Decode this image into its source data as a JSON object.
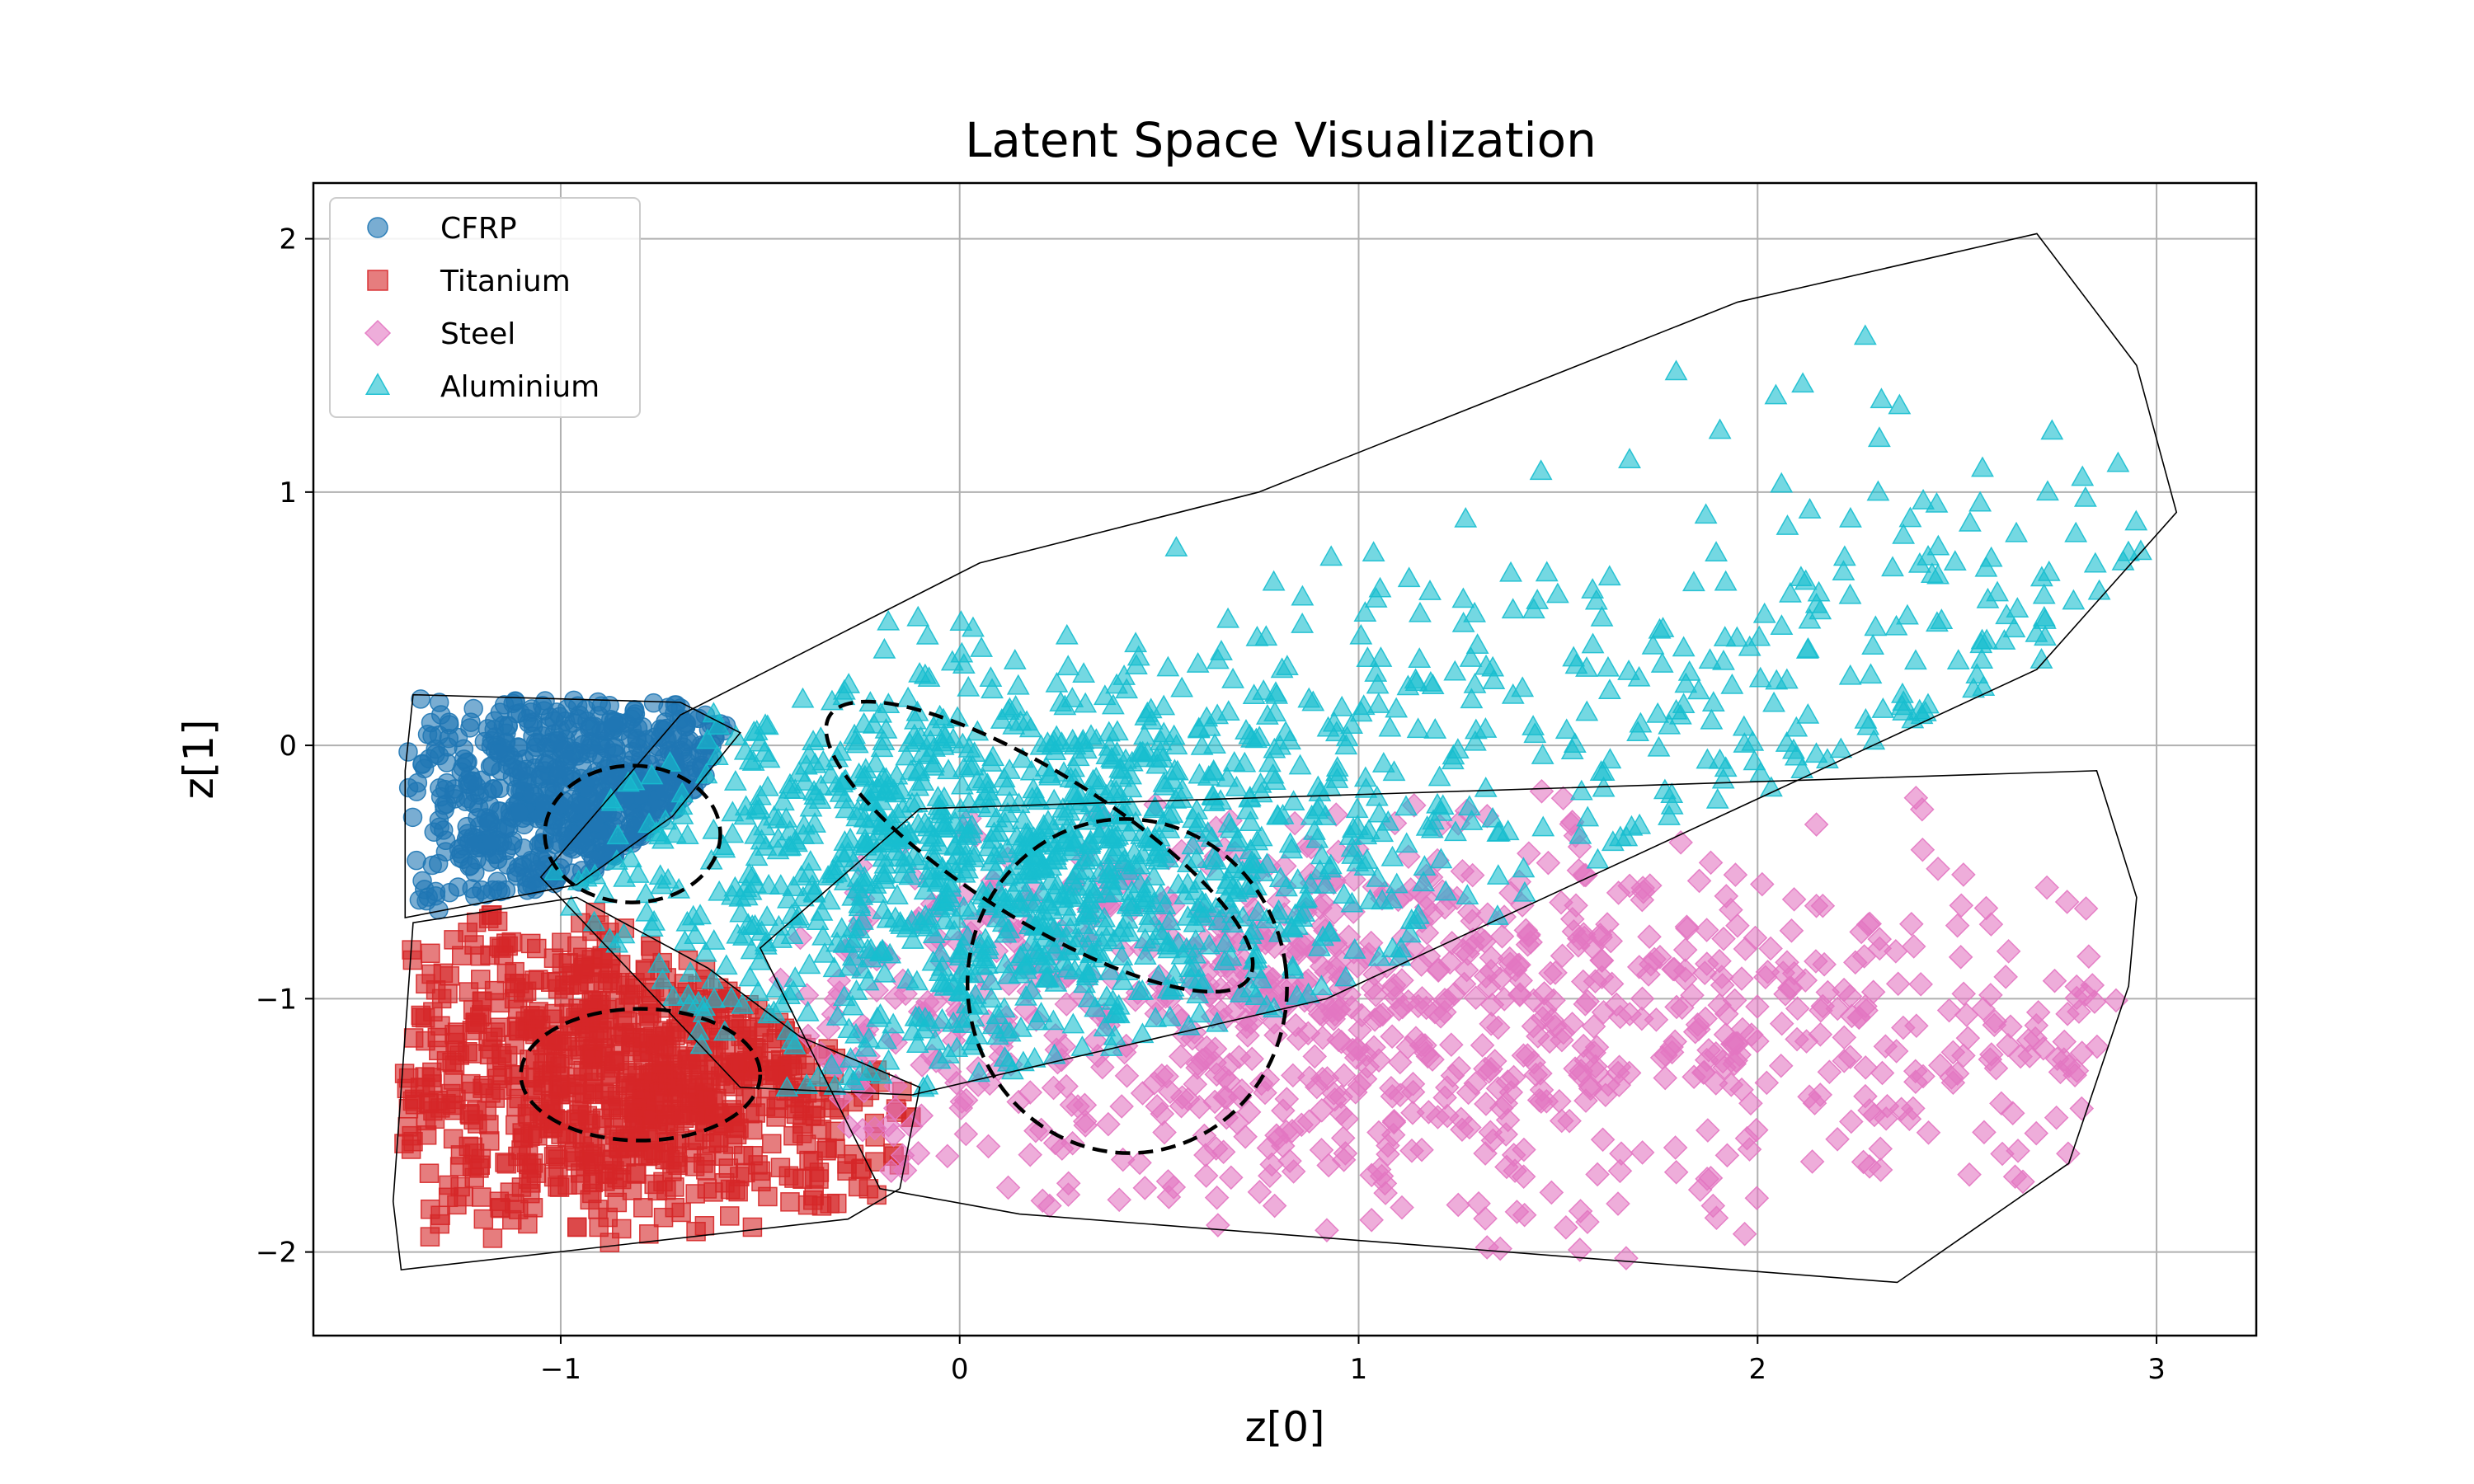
{
  "chart_data": {
    "type": "scatter",
    "title": "Latent Space Visualization",
    "xlabel": "z[0]",
    "ylabel": "z[1]",
    "xlim": [
      -1.62,
      3.25
    ],
    "ylim": [
      -2.33,
      2.22
    ],
    "xticks": [
      -1,
      0,
      1,
      2,
      3
    ],
    "yticks": [
      -2,
      -1,
      0,
      1,
      2
    ],
    "xtick_labels": [
      "−1",
      "0",
      "1",
      "2",
      "3"
    ],
    "ytick_labels": [
      "−2",
      "−1",
      "0",
      "1",
      "2"
    ],
    "grid": true,
    "legend_position": "top-left",
    "series": [
      {
        "name": "CFRP",
        "marker": "circle",
        "color": "#1f77b4",
        "center": [
          -0.85,
          -0.25
        ],
        "spread": [
          0.33,
          0.3
        ],
        "count": 700,
        "hull": [
          [
            -1.37,
            0.2
          ],
          [
            -0.7,
            0.17
          ],
          [
            -0.55,
            0.05
          ],
          [
            -0.72,
            -0.28
          ],
          [
            -0.96,
            -0.55
          ],
          [
            -1.39,
            -0.68
          ],
          [
            -1.39,
            -0.1
          ]
        ],
        "ellipse": {
          "center": [
            -0.82,
            -0.35
          ],
          "rx": 0.22,
          "ry": 0.27,
          "angle": 0
        }
      },
      {
        "name": "Titanium",
        "marker": "square",
        "color": "#d62728",
        "center": [
          -0.8,
          -1.3
        ],
        "spread": [
          0.38,
          0.32
        ],
        "count": 900,
        "hull": [
          [
            -1.37,
            -0.7
          ],
          [
            -0.96,
            -0.6
          ],
          [
            -0.63,
            -0.88
          ],
          [
            -0.4,
            -1.15
          ],
          [
            -0.1,
            -1.35
          ],
          [
            -0.15,
            -1.75
          ],
          [
            -0.28,
            -1.87
          ],
          [
            -1.4,
            -2.07
          ],
          [
            -1.42,
            -1.8
          ]
        ],
        "ellipse": {
          "center": [
            -0.8,
            -1.3
          ],
          "rx": 0.3,
          "ry": 0.26,
          "angle": 0
        }
      },
      {
        "name": "Steel",
        "marker": "diamond",
        "color": "#e377c2",
        "center": [
          0.55,
          -1.05
        ],
        "spread": [
          0.75,
          0.42
        ],
        "count": 1000,
        "hull": [
          [
            -0.1,
            -0.25
          ],
          [
            2.85,
            -0.1
          ],
          [
            2.95,
            -0.6
          ],
          [
            2.93,
            -0.95
          ],
          [
            2.78,
            -1.65
          ],
          [
            2.35,
            -2.12
          ],
          [
            0.15,
            -1.85
          ],
          [
            -0.2,
            -1.75
          ],
          [
            -0.5,
            -0.8
          ]
        ],
        "ellipse": {
          "center": [
            0.42,
            -0.95
          ],
          "rx": 0.4,
          "ry": 0.66,
          "angle": -8
        }
      },
      {
        "name": "Aluminium",
        "marker": "triangle",
        "color": "#17becf",
        "center": [
          0.05,
          -0.5
        ],
        "spread": [
          0.5,
          0.42
        ],
        "count": 1500,
        "hull": [
          [
            -0.7,
            0.12
          ],
          [
            0.05,
            0.72
          ],
          [
            0.75,
            1.0
          ],
          [
            1.95,
            1.75
          ],
          [
            2.7,
            2.02
          ],
          [
            2.95,
            1.5
          ],
          [
            3.05,
            0.92
          ],
          [
            2.7,
            0.3
          ],
          [
            0.92,
            -1.0
          ],
          [
            -0.12,
            -1.38
          ],
          [
            -0.55,
            -1.35
          ],
          [
            -1.05,
            -0.52
          ]
        ],
        "ellipse": {
          "center": [
            0.2,
            -0.4
          ],
          "rx": 0.62,
          "ry": 0.29,
          "angle": 32
        }
      }
    ]
  }
}
